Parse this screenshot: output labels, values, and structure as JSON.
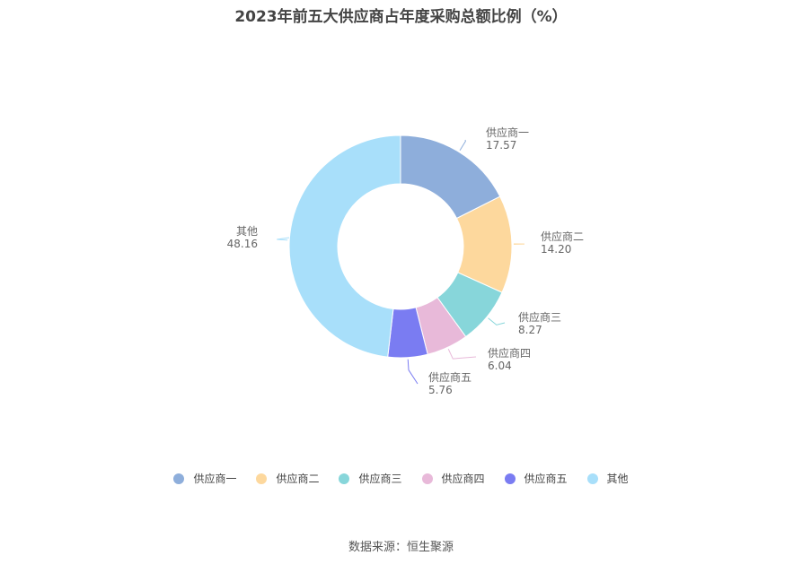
{
  "chart_data": {
    "type": "pie",
    "title": "2023年前五大供应商占年度采购总额比例（%）",
    "categories": [
      "供应商一",
      "供应商二",
      "供应商三",
      "供应商四",
      "供应商五",
      "其他"
    ],
    "values": [
      17.57,
      14.2,
      8.27,
      6.04,
      5.76,
      48.16
    ],
    "value_labels": [
      "17.57",
      "14.20",
      "8.27",
      "6.04",
      "5.76",
      "48.16"
    ],
    "colors": [
      "#8eaedb",
      "#fdd89d",
      "#87d6da",
      "#e8b9d9",
      "#7a7cf2",
      "#a8dffa"
    ],
    "legend_position": "bottom",
    "donut": true
  },
  "footer": {
    "source": "数据来源：恒生聚源"
  }
}
